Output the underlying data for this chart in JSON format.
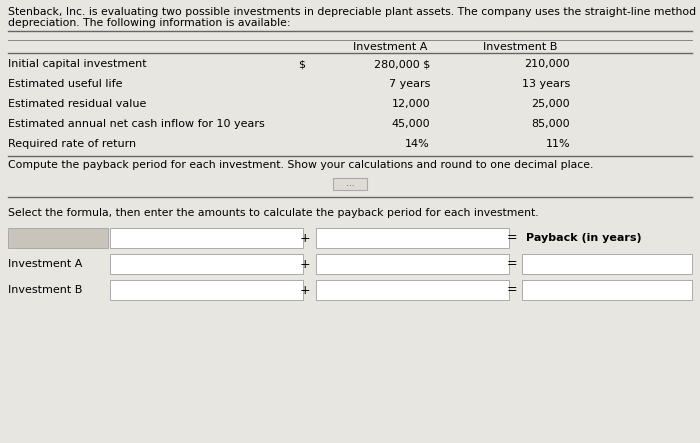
{
  "title_text1": "Stenback, Inc. is evaluating two possible investments in depreciable plant assets. The company uses the straight-line method of",
  "title_text2": "depreciation. The following information is available:",
  "bg_color": "#e8e6e0",
  "table_bg": "#e8e6e0",
  "table_rows": [
    [
      "Initial capital investment",
      "$",
      "280,000 $",
      "210,000"
    ],
    [
      "Estimated useful life",
      "",
      "7 years",
      "13 years"
    ],
    [
      "Estimated residual value",
      "",
      "12,000",
      "25,000"
    ],
    [
      "Estimated annual net cash inflow for 10 years",
      "",
      "45,000",
      "85,000"
    ],
    [
      "Required rate of return",
      "",
      "14%",
      "11%"
    ]
  ],
  "compute_text": "Compute the payback period for each investment. Show your calculations and round to one decimal place.",
  "select_text": "Select the formula, then enter the amounts to calculate the payback period for each investment.",
  "payback_label": "Payback (in years)",
  "row_labels": [
    "Investment A",
    "Investment B"
  ],
  "input_box_color": "#ffffff",
  "header_box_color": "#c8c4bc",
  "box_border_color": "#aaaaaa",
  "text_color": "#000000",
  "line_color": "#888888",
  "ellipsis_text": "...",
  "col_a_label": "Investment A",
  "col_b_label": "Investment B"
}
